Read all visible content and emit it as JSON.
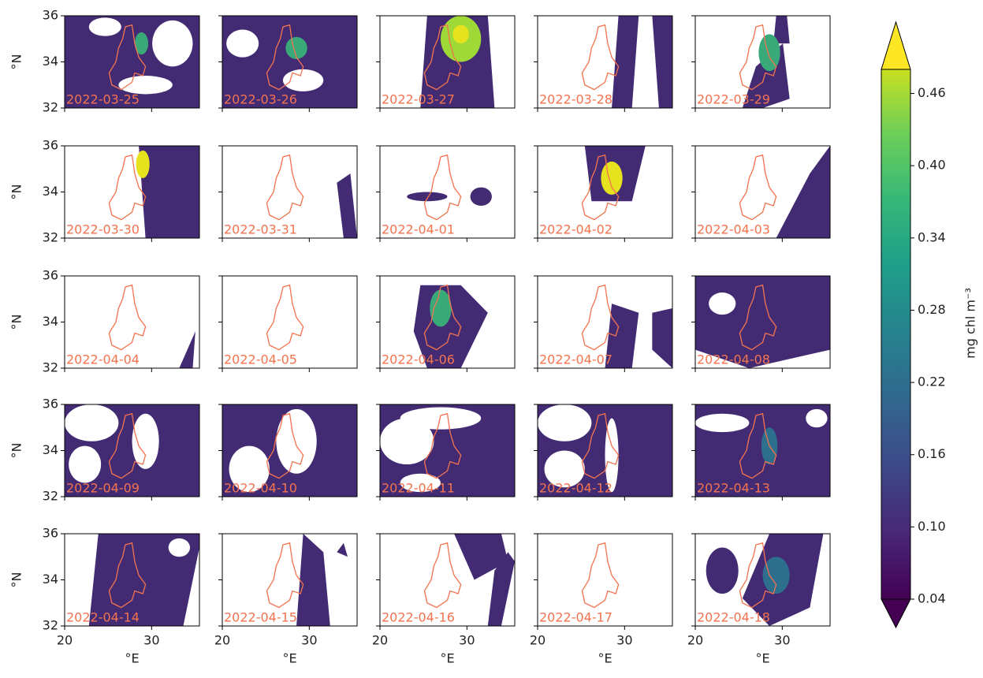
{
  "chart_data": {
    "type": "map-grid",
    "panels": [
      "2022-03-25",
      "2022-03-26",
      "2022-03-27",
      "2022-03-28",
      "2022-03-29",
      "2022-03-30",
      "2022-03-31",
      "2022-04-01",
      "2022-04-02",
      "2022-04-03",
      "2022-04-04",
      "2022-04-05",
      "2022-04-06",
      "2022-04-07",
      "2022-04-08",
      "2022-04-09",
      "2022-04-10",
      "2022-04-11",
      "2022-04-12",
      "2022-04-13",
      "2022-04-14",
      "2022-04-15",
      "2022-04-16",
      "2022-04-17",
      "2022-04-18"
    ],
    "columns": 5,
    "xlim": [
      20,
      35.5
    ],
    "ylim": [
      32,
      36
    ],
    "xticks": [
      20,
      30
    ],
    "yticks": [
      32,
      34,
      36
    ],
    "xlabel": "°E",
    "ylabel": "°N",
    "colorbar": {
      "label": "mg chl m⁻³",
      "lim": [
        0.04,
        0.48
      ],
      "ticks": [
        0.04,
        {
          "value": 0.1,
          "label": "0.10"
        },
        0.16,
        0.22,
        0.28,
        0.34,
        {
          "value": 0.4,
          "label": "0.40"
        },
        0.46
      ]
    }
  }
}
